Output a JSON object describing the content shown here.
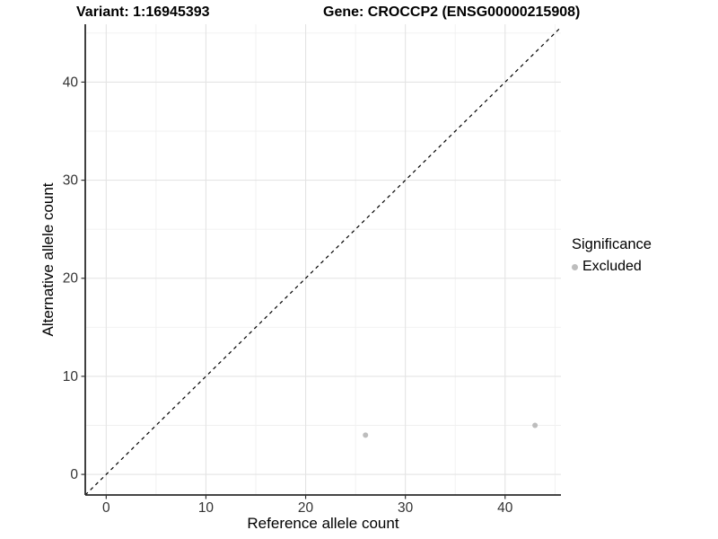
{
  "header": {
    "variant_title": "Variant: 1:16945393",
    "gene_title": "Gene: CROCCP2 (ENSG00000215908)"
  },
  "chart_data": {
    "type": "scatter",
    "xlabel": "Reference allele count",
    "ylabel": "Alternative allele count",
    "xlim": [
      -2.1,
      45.6
    ],
    "ylim": [
      -2.1,
      45.9
    ],
    "xticks": [
      0,
      10,
      20,
      30,
      40
    ],
    "yticks": [
      0,
      10,
      20,
      30,
      40
    ],
    "xminor": [
      5,
      15,
      25,
      35,
      45
    ],
    "yminor": [
      5,
      15,
      25,
      35,
      45
    ],
    "grid": "major+minor",
    "identity_line": {
      "slope": 1,
      "intercept": 0,
      "style": "dashed"
    },
    "series": [
      {
        "name": "Excluded",
        "points": [
          {
            "x": 26,
            "y": 4
          },
          {
            "x": 43,
            "y": 5
          }
        ]
      }
    ],
    "legend_position": "right"
  },
  "legend": {
    "title": "Significance",
    "items": [
      {
        "label": "Excluded"
      }
    ]
  },
  "colors": {
    "background": "#ffffff",
    "grid_major": "#e4e4e4",
    "grid_minor": "#f0f0f0",
    "axis_line": "#2b2b2b",
    "tick_mark": "#333333",
    "tick_label": "#333333",
    "identity_line": "#000000",
    "point": "#bdbdbd"
  }
}
